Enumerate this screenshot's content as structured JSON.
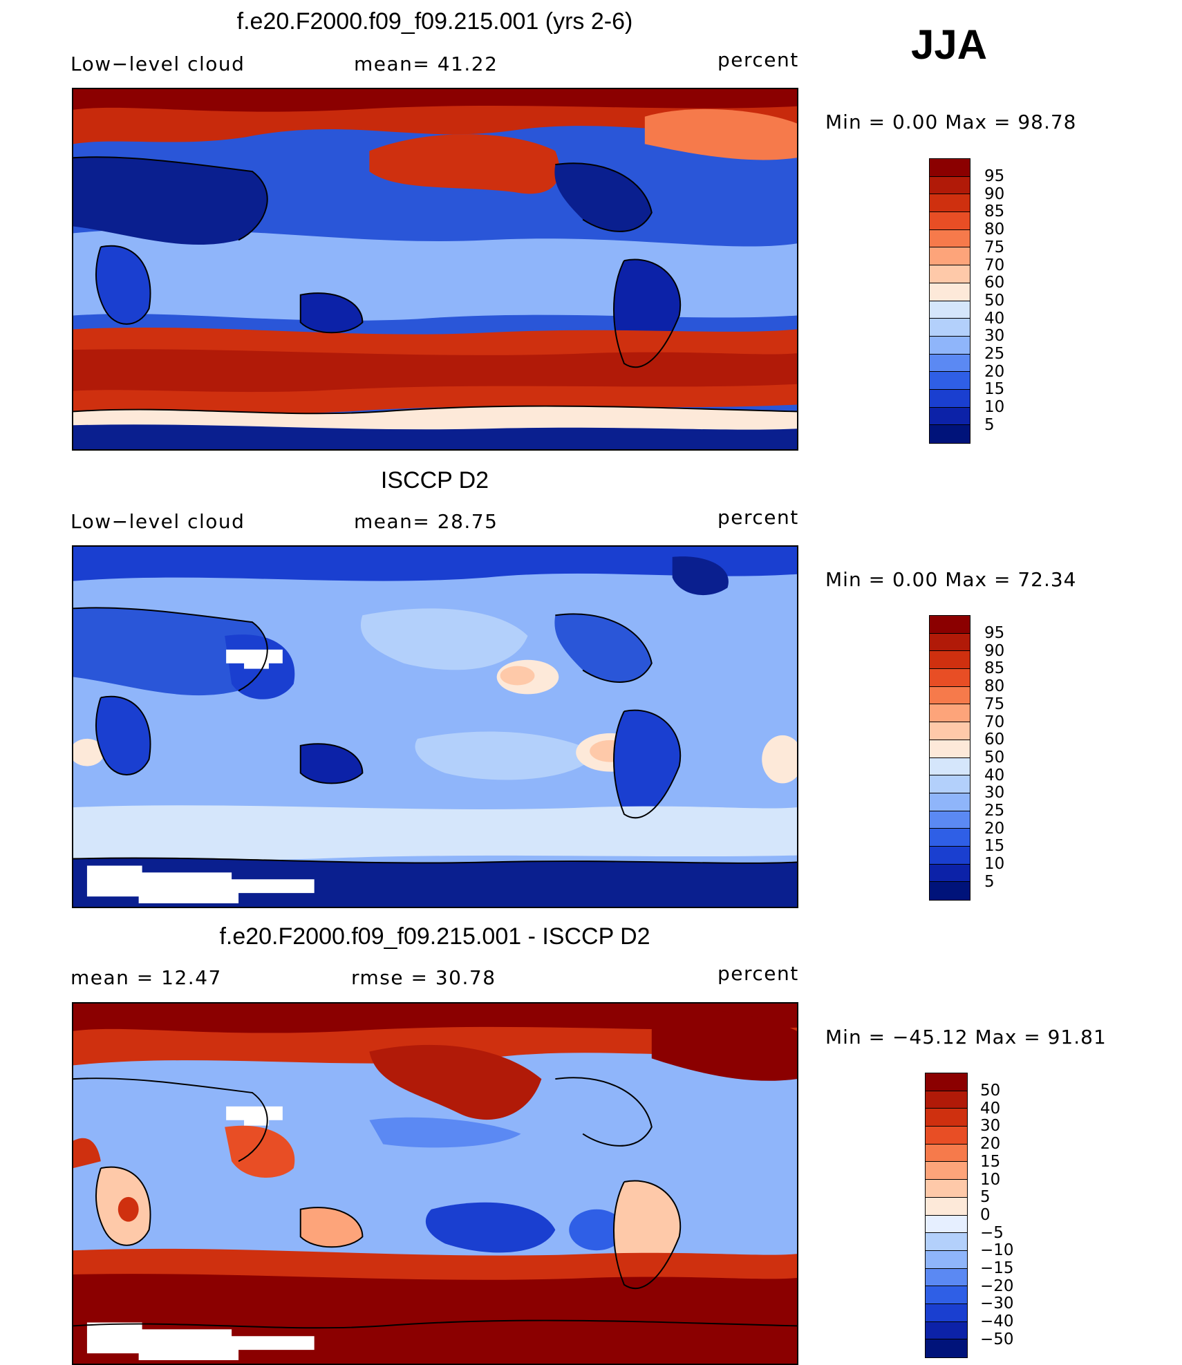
{
  "season": "JJA",
  "panels": [
    {
      "title": "f.e20.F2000.f09_f09.215.001 (yrs 2-6)",
      "left_label": "Low−level cloud",
      "mid_label": "mean=   41.22",
      "right_label": "percent",
      "minmax": "Min  =     0.00  Max  =    98.78",
      "colorbar": {
        "labels": [
          "95",
          "90",
          "85",
          "80",
          "75",
          "70",
          "60",
          "50",
          "40",
          "30",
          "25",
          "20",
          "15",
          "10",
          "5"
        ],
        "colors": [
          "#8b0000",
          "#b11a08",
          "#cf300f",
          "#e84e25",
          "#f67a4b",
          "#fda47a",
          "#fec9a9",
          "#fde9d9",
          "#d5e6fb",
          "#b3d0fb",
          "#8fb5fa",
          "#5b89f3",
          "#2f5fe6",
          "#1a3fd0",
          "#0c22a8",
          "#00137a"
        ]
      },
      "map_colors": {
        "base": "#2a56d8",
        "high": "#c82a0c",
        "low": "#0a1f8f"
      }
    },
    {
      "title": "ISCCP D2",
      "left_label": "Low−level cloud",
      "mid_label": "mean=   28.75",
      "right_label": "percent",
      "minmax": "Min  =     0.00  Max  =    72.34",
      "colorbar": {
        "labels": [
          "95",
          "90",
          "85",
          "80",
          "75",
          "70",
          "60",
          "50",
          "40",
          "30",
          "25",
          "20",
          "15",
          "10",
          "5"
        ],
        "colors": [
          "#8b0000",
          "#b11a08",
          "#cf300f",
          "#e84e25",
          "#f67a4b",
          "#fda47a",
          "#fec9a9",
          "#fde9d9",
          "#d5e6fb",
          "#b3d0fb",
          "#8fb5fa",
          "#5b89f3",
          "#2f5fe6",
          "#1a3fd0",
          "#0c22a8",
          "#00137a"
        ]
      },
      "map_colors": {
        "base": "#8fb5fa",
        "high": "#fec9a9",
        "low": "#0a1f8f"
      }
    },
    {
      "title": "f.e20.F2000.f09_f09.215.001 - ISCCP D2",
      "left_label": "mean  =    12.47",
      "mid_label": "rmse  =    30.78",
      "right_label": "percent",
      "minmax": "Min  = −45.12  Max  =    91.81",
      "colorbar": {
        "labels": [
          "50",
          "40",
          "30",
          "20",
          "15",
          "10",
          "5",
          "0",
          "−5",
          "−10",
          "−15",
          "−20",
          "−30",
          "−40",
          "−50"
        ],
        "colors": [
          "#8b0000",
          "#b11a08",
          "#cf300f",
          "#e84e25",
          "#f67a4b",
          "#fda47a",
          "#fec9a9",
          "#fde9d9",
          "#e6efff",
          "#b3d0fb",
          "#8fb5fa",
          "#5b89f3",
          "#2f5fe6",
          "#1a3fd0",
          "#0c22a8",
          "#00137a"
        ]
      },
      "map_colors": {
        "base": "#8fb5fa",
        "high": "#c82a0c",
        "low": "#1a3fd0"
      }
    }
  ]
}
